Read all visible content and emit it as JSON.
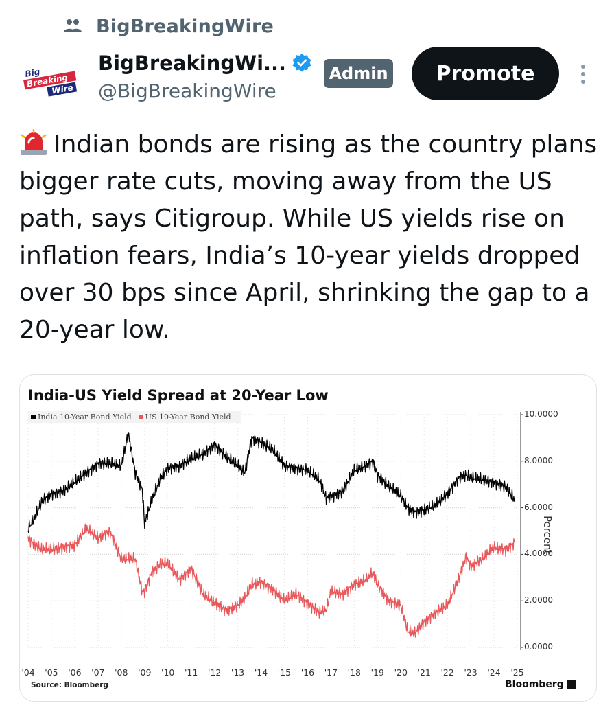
{
  "community": {
    "icon": "people-icon",
    "name": "BigBreakingWire"
  },
  "author": {
    "avatar_text": [
      "Big",
      "Breaking",
      "Wire"
    ],
    "display_name": "BigBreakingWi...",
    "handle": "@BigBreakingWire",
    "verified": true,
    "badge": "Admin"
  },
  "actions": {
    "promote_label": "Promote",
    "more_icon": "more-vertical-icon"
  },
  "tweet": {
    "emoji": "police-siren-icon",
    "text": "Indian bonds are rising as the country plans bigger rate cuts, moving away from the US path, says Citigroup. While US yields rise on inflation fears, India’s 10-year yields dropped over 30 bps since April, shrinking the gap to a 20-year low."
  },
  "colors": {
    "india": "#000000",
    "us": "#e8585b",
    "verified": "#1d9bf0",
    "promote_bg": "#0f1419",
    "admin_bg": "#536471"
  },
  "chart_data": {
    "type": "line",
    "title": "India-US Yield Spread at 20-Year Low",
    "ylabel": "Percent",
    "ylim": [
      0,
      10
    ],
    "yticks": [
      "10.0000",
      "8.0000",
      "6.0000",
      "4.0000",
      "2.0000",
      "0.0000"
    ],
    "x_ticks": [
      "'04",
      "'05",
      "'06",
      "'07",
      "'08",
      "'09",
      "'10",
      "'11",
      "'12",
      "'13",
      "'14",
      "'15",
      "'16",
      "'17",
      "'18",
      "'19",
      "'20",
      "'21",
      "'22",
      "'23",
      "'24",
      "'25"
    ],
    "legend_position": "top-left",
    "grid": true,
    "x": [
      2004.0,
      2004.3,
      2004.6,
      2005.0,
      2005.5,
      2006.0,
      2006.5,
      2007.0,
      2007.5,
      2008.0,
      2008.3,
      2008.6,
      2008.9,
      2009.0,
      2009.3,
      2009.7,
      2010.0,
      2010.5,
      2011.0,
      2011.5,
      2012.0,
      2012.5,
      2013.0,
      2013.3,
      2013.6,
      2014.0,
      2014.5,
      2015.0,
      2015.5,
      2016.0,
      2016.5,
      2016.8,
      2017.0,
      2017.5,
      2018.0,
      2018.5,
      2018.8,
      2019.0,
      2019.5,
      2020.0,
      2020.3,
      2020.6,
      2021.0,
      2021.5,
      2022.0,
      2022.5,
      2022.8,
      2023.0,
      2023.5,
      2024.0,
      2024.5,
      2024.9
    ],
    "series": [
      {
        "name": "India 10-Year Bond Yield",
        "values": [
          5.1,
          5.6,
          6.3,
          6.6,
          6.7,
          7.1,
          7.5,
          7.9,
          7.9,
          7.8,
          9.2,
          7.5,
          6.8,
          5.3,
          6.3,
          7.3,
          7.7,
          7.8,
          8.1,
          8.3,
          8.7,
          8.2,
          7.8,
          7.5,
          9.0,
          8.8,
          8.5,
          7.8,
          7.7,
          7.6,
          7.2,
          6.4,
          6.5,
          6.7,
          7.6,
          7.8,
          8.0,
          7.4,
          6.9,
          6.5,
          6.0,
          5.8,
          5.9,
          6.1,
          6.6,
          7.3,
          7.4,
          7.3,
          7.2,
          7.1,
          6.9,
          6.3
        ]
      },
      {
        "name": "US 10-Year Bond Yield",
        "values": [
          4.7,
          4.4,
          4.2,
          4.2,
          4.3,
          4.4,
          5.1,
          4.7,
          5.0,
          3.8,
          3.8,
          3.8,
          2.4,
          2.4,
          3.2,
          3.6,
          3.6,
          2.9,
          3.4,
          2.3,
          1.9,
          1.6,
          1.8,
          2.1,
          2.7,
          2.8,
          2.5,
          2.0,
          2.3,
          1.9,
          1.5,
          1.6,
          2.4,
          2.3,
          2.7,
          2.9,
          3.2,
          2.7,
          2.0,
          1.8,
          0.7,
          0.6,
          1.1,
          1.5,
          1.8,
          3.0,
          3.9,
          3.5,
          3.8,
          4.3,
          4.2,
          4.5
        ]
      }
    ],
    "source": "Source: Bloomberg",
    "brand": "Bloomberg"
  }
}
